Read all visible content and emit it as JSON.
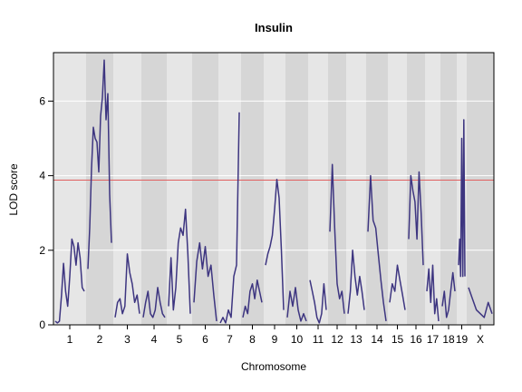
{
  "chart_data": {
    "type": "line",
    "title": "Insulin",
    "xlabel": "Chromosome",
    "ylabel": "LOD score",
    "ylim": [
      0,
      7.3
    ],
    "yticks": [
      0,
      2,
      4,
      6
    ],
    "threshold": 3.88,
    "grid": true,
    "colors": {
      "line": "#3d3580",
      "threshold": "#e06060",
      "band_light": "#e6e6e6",
      "band_dark": "#d6d6d6",
      "grid": "#ffffff",
      "frame": "#000000"
    },
    "chromosomes": [
      {
        "name": "1",
        "lod": [
          0.1,
          0.05,
          0.1,
          0.8,
          1.65,
          0.9,
          0.5,
          1.3,
          2.3,
          2.1,
          1.6,
          2.2,
          1.8,
          1.0,
          0.9
        ]
      },
      {
        "name": "2",
        "lod": [
          1.5,
          2.6,
          4.2,
          5.3,
          5.0,
          4.9,
          4.1,
          5.6,
          6.1,
          7.1,
          5.5,
          6.2,
          3.5,
          2.2
        ]
      },
      {
        "name": "3",
        "lod": [
          0.2,
          0.6,
          0.7,
          0.3,
          0.5,
          1.9,
          1.4,
          1.1,
          0.6,
          0.8,
          0.3
        ]
      },
      {
        "name": "4",
        "lod": [
          0.2,
          0.6,
          0.9,
          0.3,
          0.2,
          0.4,
          1.0,
          0.6,
          0.3,
          0.2
        ]
      },
      {
        "name": "5",
        "lod": [
          0.5,
          1.8,
          0.4,
          1.0,
          2.2,
          2.6,
          2.4,
          3.1,
          1.9,
          0.3
        ]
      },
      {
        "name": "6",
        "lod": [
          0.6,
          1.7,
          2.2,
          1.5,
          2.1,
          1.3,
          1.6,
          0.8,
          0.1
        ]
      },
      {
        "name": "7",
        "lod": [
          0.05,
          0.2,
          0.05,
          0.4,
          0.2,
          1.3,
          1.6,
          5.7
        ]
      },
      {
        "name": "8",
        "lod": [
          0.2,
          0.5,
          0.3,
          0.9,
          1.1,
          0.7,
          1.2,
          0.9,
          0.6
        ]
      },
      {
        "name": "9",
        "lod": [
          1.6,
          1.9,
          2.1,
          2.4,
          3.1,
          3.9,
          3.4,
          2.0,
          0.4
        ]
      },
      {
        "name": "10",
        "lod": [
          0.2,
          0.9,
          0.5,
          1.0,
          0.4,
          0.1,
          0.3,
          0.1
        ]
      },
      {
        "name": "11",
        "lod": [
          1.2,
          0.9,
          0.6,
          0.2,
          0.05,
          0.3,
          1.1,
          0.4
        ]
      },
      {
        "name": "12",
        "lod": [
          2.5,
          4.3,
          2.6,
          1.1,
          0.7,
          0.9,
          0.3
        ]
      },
      {
        "name": "13",
        "lod": [
          0.3,
          0.9,
          2.0,
          1.3,
          0.8,
          1.3,
          0.9,
          0.4
        ]
      },
      {
        "name": "14",
        "lod": [
          2.5,
          4.0,
          2.8,
          2.6,
          1.9,
          1.2,
          0.6,
          0.1
        ]
      },
      {
        "name": "15",
        "lod": [
          0.6,
          1.1,
          0.9,
          1.6,
          1.2,
          0.8,
          0.4
        ]
      },
      {
        "name": "16",
        "lod": [
          2.3,
          4.0,
          3.6,
          3.3,
          2.3,
          4.1,
          3.0,
          1.6
        ]
      },
      {
        "name": "17",
        "lod": [
          0.9,
          1.5,
          0.6,
          1.6,
          0.3,
          0.7,
          0.1
        ]
      },
      {
        "name": "18",
        "lod": [
          0.5,
          0.9,
          0.2,
          0.4,
          0.9,
          1.4,
          0.9
        ]
      },
      {
        "name": "19",
        "lod": [
          1.6,
          2.3,
          1.3,
          5.0,
          1.3,
          5.5,
          1.3
        ]
      },
      {
        "name": "X",
        "lod": [
          1.0,
          0.7,
          0.4,
          0.3,
          0.2,
          0.6,
          0.3
        ]
      }
    ]
  }
}
